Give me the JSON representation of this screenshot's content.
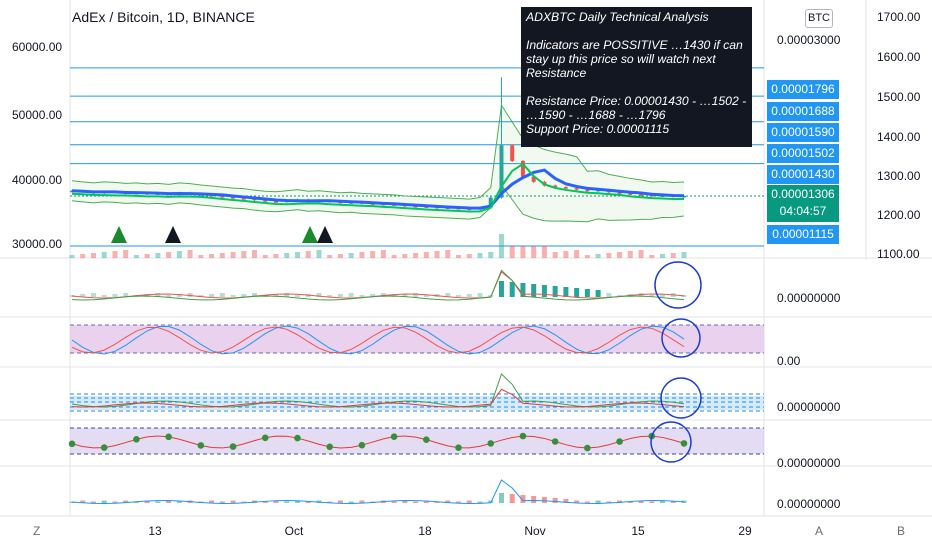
{
  "header": {
    "title": "AdEx / Bitcoin, 1D, BINANCE",
    "currency_badge": "BTC"
  },
  "note": {
    "title": "ADXBTC Daily Technical Analysis",
    "body": "Indicators are POSSITIVE …1430 if can stay up this price so will watch next Resistance",
    "resistance": "Resistance Price: 0.00001430 - …1502 - …1590 - …1688 - …1796",
    "support": "Support Price: 0.00001115"
  },
  "left_axis": [
    "60000.00",
    "50000.00",
    "40000.00",
    "30000.00"
  ],
  "outer_right_axis": [
    "1700.00",
    "1600.00",
    "1500.00",
    "1400.00",
    "1300.00",
    "1200.00",
    "1100.00"
  ],
  "right_axis_top": "0.00003000",
  "price_tags": [
    "0.00001796",
    "0.00001688",
    "0.00001590",
    "0.00001502",
    "0.00001430",
    "0.00001115"
  ],
  "current_price": {
    "value": "0.00001306",
    "countdown": "04:04:57"
  },
  "pane_labels": [
    "0.00000000",
    "0.00",
    "0.00000000",
    "0.00000000",
    "0.00000000"
  ],
  "x_axis": [
    "13",
    "Oct",
    "18",
    "Nov",
    "15",
    "29"
  ],
  "corner_buttons": [
    "Z",
    "A",
    "B"
  ],
  "colors": {
    "up": "#26a69a",
    "down": "#ef5350",
    "resistance": "#2196f3",
    "current": "#089981",
    "note_bg": "#131722",
    "ma_blue": "#2962ff",
    "band": "#4caf50",
    "osc_fill": "#e1bee7"
  },
  "chart_data": {
    "type": "line",
    "title": "AdEx / Bitcoin, 1D, BINANCE",
    "resistance_levels": [
      1.796e-05,
      1.688e-05,
      1.59e-05,
      1.502e-05,
      1.43e-05
    ],
    "support_level": 1.115e-05,
    "current_price": 1.306e-05,
    "series": [
      {
        "values": [
          1326,
          1322,
          1318,
          1322,
          1320,
          1316,
          1318,
          1314,
          1316,
          1312,
          1318,
          1315,
          1310,
          1306,
          1302,
          1298,
          1296,
          1290,
          1286,
          1284,
          1288,
          1292,
          1286,
          1288,
          1284,
          1280,
          1282,
          1278,
          1276,
          1274,
          1272,
          1268,
          1266,
          1264,
          1262,
          1260,
          1258,
          1256,
          1262,
          1300,
          1500,
          1440,
          1380,
          1360,
          1346,
          1340,
          1336,
          1330,
          1324,
          1330,
          1320,
          1316,
          1312,
          1310,
          1306,
          1308,
          1304,
          1306
        ]
      }
    ]
  }
}
